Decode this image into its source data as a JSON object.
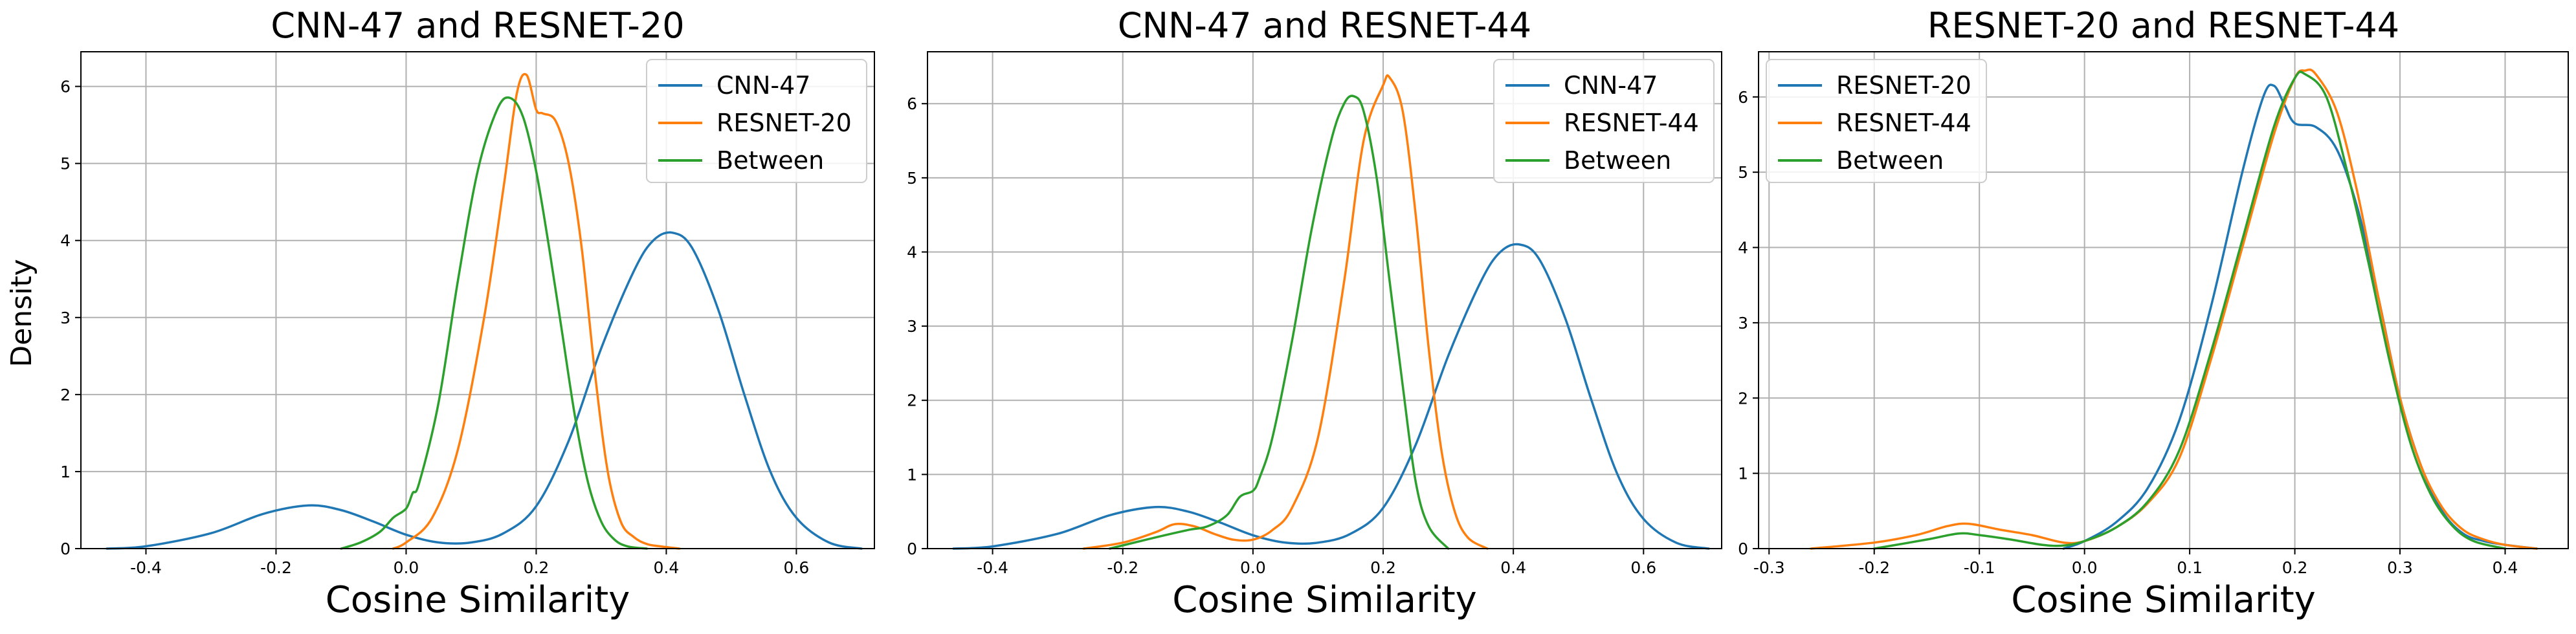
{
  "ylabel": "Density",
  "colors": {
    "blue": "#1f77b4",
    "orange": "#ff7f0e",
    "green": "#2ca02c"
  },
  "chart_data": [
    {
      "type": "line",
      "title": "CNN-47 and RESNET-20",
      "xlabel": "Cosine Similarity",
      "xlim": [
        -0.5,
        0.72
      ],
      "ylim": [
        0,
        6.45
      ],
      "xticks": [
        "-0.4",
        "-0.2",
        "0.0",
        "0.2",
        "0.4",
        "0.6"
      ],
      "xtick_values": [
        -0.4,
        -0.2,
        0.0,
        0.2,
        0.4,
        0.6
      ],
      "yticks": [
        "0",
        "1",
        "2",
        "3",
        "4",
        "5",
        "6"
      ],
      "ytick_values": [
        0,
        1,
        2,
        3,
        4,
        5,
        6
      ],
      "grid": true,
      "legend": "top-right",
      "series": [
        {
          "name": "CNN-47",
          "color": "#1f77b4",
          "x": [
            -0.46,
            -0.4,
            -0.3,
            -0.22,
            -0.15,
            -0.1,
            -0.05,
            0.0,
            0.05,
            0.1,
            0.15,
            0.2,
            0.25,
            0.3,
            0.35,
            0.38,
            0.41,
            0.44,
            0.48,
            0.52,
            0.56,
            0.6,
            0.65,
            0.7
          ],
          "y": [
            0.0,
            0.03,
            0.2,
            0.45,
            0.56,
            0.5,
            0.35,
            0.18,
            0.08,
            0.08,
            0.2,
            0.55,
            1.4,
            2.6,
            3.6,
            4.0,
            4.1,
            3.9,
            3.1,
            2.0,
            1.0,
            0.4,
            0.08,
            0.0
          ]
        },
        {
          "name": "RESNET-20",
          "color": "#ff7f0e",
          "x": [
            -0.02,
            0.0,
            0.04,
            0.08,
            0.12,
            0.15,
            0.17,
            0.185,
            0.2,
            0.21,
            0.23,
            0.25,
            0.27,
            0.29,
            0.31,
            0.33,
            0.35,
            0.37,
            0.39,
            0.42
          ],
          "y": [
            0.0,
            0.08,
            0.4,
            1.3,
            3.0,
            4.7,
            5.9,
            6.15,
            5.7,
            5.65,
            5.55,
            5.0,
            3.9,
            2.3,
            1.0,
            0.35,
            0.15,
            0.06,
            0.03,
            0.0
          ]
        },
        {
          "name": "Between",
          "color": "#2ca02c",
          "x": [
            -0.1,
            -0.07,
            -0.04,
            -0.02,
            0.0,
            0.01,
            0.02,
            0.05,
            0.08,
            0.11,
            0.14,
            0.16,
            0.18,
            0.2,
            0.22,
            0.24,
            0.26,
            0.28,
            0.3,
            0.32,
            0.34,
            0.37
          ],
          "y": [
            0.0,
            0.08,
            0.22,
            0.4,
            0.52,
            0.72,
            0.85,
            1.9,
            3.5,
            4.9,
            5.7,
            5.85,
            5.6,
            4.9,
            3.9,
            2.8,
            1.7,
            0.85,
            0.35,
            0.12,
            0.03,
            0.0
          ]
        }
      ]
    },
    {
      "type": "line",
      "title": "CNN-47 and RESNET-44",
      "xlabel": "Cosine Similarity",
      "xlim": [
        -0.5,
        0.72
      ],
      "ylim": [
        0,
        6.7
      ],
      "xticks": [
        "-0.4",
        "-0.2",
        "0.0",
        "0.2",
        "0.4",
        "0.6"
      ],
      "xtick_values": [
        -0.4,
        -0.2,
        0.0,
        0.2,
        0.4,
        0.6
      ],
      "yticks": [
        "0",
        "1",
        "2",
        "3",
        "4",
        "5",
        "6"
      ],
      "ytick_values": [
        0,
        1,
        2,
        3,
        4,
        5,
        6
      ],
      "grid": true,
      "legend": "top-right",
      "series": [
        {
          "name": "CNN-47",
          "color": "#1f77b4",
          "x": [
            -0.46,
            -0.4,
            -0.3,
            -0.22,
            -0.15,
            -0.1,
            -0.05,
            0.0,
            0.05,
            0.1,
            0.15,
            0.2,
            0.25,
            0.3,
            0.35,
            0.38,
            0.41,
            0.44,
            0.48,
            0.52,
            0.56,
            0.6,
            0.65,
            0.7
          ],
          "y": [
            0.0,
            0.03,
            0.2,
            0.45,
            0.56,
            0.5,
            0.35,
            0.18,
            0.08,
            0.08,
            0.2,
            0.55,
            1.4,
            2.6,
            3.6,
            4.0,
            4.1,
            3.9,
            3.1,
            2.0,
            1.0,
            0.4,
            0.08,
            0.0
          ]
        },
        {
          "name": "RESNET-44",
          "color": "#ff7f0e",
          "x": [
            -0.26,
            -0.2,
            -0.15,
            -0.12,
            -0.09,
            -0.06,
            -0.03,
            0.0,
            0.03,
            0.06,
            0.1,
            0.14,
            0.17,
            0.2,
            0.21,
            0.23,
            0.25,
            0.27,
            0.29,
            0.31,
            0.33,
            0.36
          ],
          "y": [
            0.0,
            0.08,
            0.22,
            0.33,
            0.3,
            0.2,
            0.12,
            0.12,
            0.25,
            0.55,
            1.5,
            3.6,
            5.5,
            6.25,
            6.35,
            5.9,
            4.5,
            2.7,
            1.3,
            0.5,
            0.15,
            0.0
          ]
        },
        {
          "name": "Between",
          "color": "#2ca02c",
          "x": [
            -0.22,
            -0.15,
            -0.1,
            -0.07,
            -0.04,
            -0.02,
            0.0,
            0.01,
            0.03,
            0.06,
            0.09,
            0.12,
            0.14,
            0.155,
            0.17,
            0.19,
            0.21,
            0.23,
            0.25,
            0.27,
            0.3
          ],
          "y": [
            0.0,
            0.15,
            0.25,
            0.3,
            0.45,
            0.7,
            0.78,
            0.95,
            1.5,
            2.8,
            4.3,
            5.5,
            6.0,
            6.1,
            5.9,
            5.0,
            3.6,
            2.2,
            0.9,
            0.3,
            0.0
          ]
        }
      ]
    },
    {
      "type": "line",
      "title": "RESNET-20 and RESNET-44",
      "xlabel": "Cosine Similarity",
      "xlim": [
        -0.31,
        0.46
      ],
      "ylim": [
        0,
        6.6
      ],
      "xticks": [
        "-0.3",
        "-0.2",
        "-0.1",
        "0.0",
        "0.1",
        "0.2",
        "0.3",
        "0.4"
      ],
      "xtick_values": [
        -0.3,
        -0.2,
        -0.1,
        0.0,
        0.1,
        0.2,
        0.3,
        0.4
      ],
      "yticks": [
        "0",
        "1",
        "2",
        "3",
        "4",
        "5",
        "6"
      ],
      "ytick_values": [
        0,
        1,
        2,
        3,
        4,
        5,
        6
      ],
      "grid": true,
      "legend": "top-left",
      "series": [
        {
          "name": "RESNET-20",
          "color": "#1f77b4",
          "x": [
            -0.02,
            0.0,
            0.03,
            0.06,
            0.09,
            0.12,
            0.15,
            0.17,
            0.18,
            0.19,
            0.2,
            0.22,
            0.24,
            0.26,
            0.28,
            0.3,
            0.32,
            0.34,
            0.36,
            0.38,
            0.4,
            0.43
          ],
          "y": [
            0.0,
            0.1,
            0.35,
            0.8,
            1.7,
            3.2,
            5.0,
            6.0,
            6.15,
            5.9,
            5.65,
            5.6,
            5.3,
            4.5,
            3.3,
            2.0,
            1.1,
            0.5,
            0.2,
            0.1,
            0.05,
            0.0
          ]
        },
        {
          "name": "RESNET-44",
          "color": "#ff7f0e",
          "x": [
            -0.26,
            -0.2,
            -0.16,
            -0.13,
            -0.11,
            -0.08,
            -0.05,
            -0.02,
            0.0,
            0.03,
            0.06,
            0.09,
            0.12,
            0.15,
            0.18,
            0.2,
            0.21,
            0.22,
            0.24,
            0.26,
            0.28,
            0.3,
            0.32,
            0.34,
            0.36,
            0.38,
            0.4,
            0.43
          ],
          "y": [
            0.0,
            0.08,
            0.18,
            0.3,
            0.33,
            0.25,
            0.18,
            0.08,
            0.1,
            0.28,
            0.6,
            1.2,
            2.5,
            4.0,
            5.5,
            6.25,
            6.35,
            6.3,
            5.8,
            4.7,
            3.3,
            2.0,
            1.1,
            0.55,
            0.25,
            0.12,
            0.05,
            0.0
          ]
        },
        {
          "name": "Between",
          "color": "#2ca02c",
          "x": [
            -0.2,
            -0.15,
            -0.12,
            -0.1,
            -0.07,
            -0.04,
            -0.02,
            0.0,
            0.03,
            0.06,
            0.09,
            0.12,
            0.15,
            0.18,
            0.2,
            0.21,
            0.23,
            0.25,
            0.27,
            0.29,
            0.31,
            0.33,
            0.35,
            0.37,
            0.4
          ],
          "y": [
            0.0,
            0.12,
            0.2,
            0.18,
            0.12,
            0.05,
            0.04,
            0.1,
            0.28,
            0.62,
            1.3,
            2.6,
            4.1,
            5.6,
            6.25,
            6.3,
            6.0,
            5.0,
            3.8,
            2.5,
            1.4,
            0.7,
            0.3,
            0.1,
            0.0
          ]
        }
      ]
    }
  ]
}
